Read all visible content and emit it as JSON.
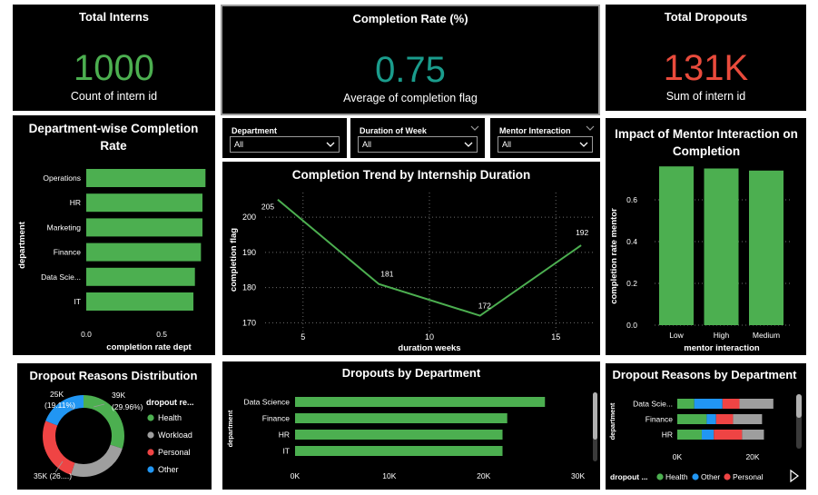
{
  "kpis": {
    "interns": {
      "title": "Total Interns",
      "value": "1000",
      "subtitle": "Count of intern id",
      "color": "#4caf50"
    },
    "completion": {
      "title": "Completion Rate (%)",
      "value": "0.75",
      "subtitle": "Average of completion flag",
      "color": "#1a9c8c"
    },
    "dropouts": {
      "title": "Total Dropouts",
      "value": "131K",
      "subtitle": "Sum of intern id",
      "color": "#e94b3c"
    }
  },
  "slicers": [
    {
      "label": "Department",
      "value": "All"
    },
    {
      "label": "Duration of Week",
      "value": "All"
    },
    {
      "label": "Mentor Interaction",
      "value": "All"
    }
  ],
  "colors": {
    "bar": "#4caf50",
    "health": "#4caf50",
    "workload": "#9e9e9e",
    "personal": "#ef4444",
    "other": "#2196f3",
    "grid": "#6b6b6b"
  },
  "chart_data": [
    {
      "type": "bar",
      "orientation": "horizontal",
      "title": "Department-wise Completion Rate",
      "ylabel": "department",
      "xlabel": "completion rate dept",
      "categories": [
        "Operations",
        "HR",
        "Marketing",
        "Finance",
        "Data Scie...",
        "IT"
      ],
      "values": [
        0.79,
        0.77,
        0.77,
        0.76,
        0.72,
        0.71
      ],
      "xlim": [
        0,
        0.8
      ],
      "xticks": [
        "0.0",
        "0.5"
      ]
    },
    {
      "type": "line",
      "title": "Completion Trend by Internship Duration",
      "xlabel": "duration weeks",
      "ylabel": "completion flag",
      "x": [
        4,
        8,
        12,
        16
      ],
      "y": [
        205,
        181,
        172,
        192
      ],
      "data_labels": [
        "205",
        "181",
        "172",
        "192"
      ],
      "xlim": [
        3.5,
        16.5
      ],
      "ylim": [
        167.5,
        207
      ],
      "xticks": [
        "5",
        "10",
        "15"
      ],
      "yticks": [
        "170",
        "180",
        "190",
        "200"
      ]
    },
    {
      "type": "bar",
      "title": "Impact of Mentor Interaction on Completion",
      "xlabel": "mentor interaction",
      "ylabel": "completion rate mentor",
      "categories": [
        "Low",
        "High",
        "Medium"
      ],
      "values": [
        0.76,
        0.75,
        0.74
      ],
      "ylim": [
        0,
        0.8
      ],
      "yticks": [
        "0.0",
        "0.2",
        "0.4",
        "0.6"
      ]
    },
    {
      "type": "pie",
      "subtype": "donut",
      "title": "Dropout Reasons Distribution",
      "legend_title": "dropout re...",
      "slices": [
        {
          "name": "Health",
          "value": 29.96,
          "label": "39K\n(29.96%)"
        },
        {
          "name": "Workload",
          "value": 25.0,
          "label": ""
        },
        {
          "name": "Personal",
          "value": 25.93,
          "label": "35K (26....)"
        },
        {
          "name": "Other",
          "value": 19.11,
          "label": "25K\n(19.11%)"
        }
      ]
    },
    {
      "type": "bar",
      "orientation": "horizontal",
      "title": "Dropouts by Department",
      "ylabel": "department",
      "categories": [
        "Data Science",
        "Finance",
        "HR",
        "IT"
      ],
      "values": [
        26500,
        22500,
        22000,
        22000
      ],
      "xlim": [
        0,
        31000
      ],
      "xticks": [
        "0K",
        "10K",
        "20K",
        "30K"
      ]
    },
    {
      "type": "bar",
      "orientation": "horizontal",
      "stacked": true,
      "title": "Dropout Reasons by Department",
      "ylabel": "department",
      "legend_title": "dropout ...",
      "categories": [
        "Data Scie...",
        "Finance",
        "HR"
      ],
      "series": [
        {
          "name": "Health",
          "values": [
            4500,
            7800,
            6500
          ]
        },
        {
          "name": "Other",
          "values": [
            7500,
            2500,
            3200
          ]
        },
        {
          "name": "Personal",
          "values": [
            4500,
            4500,
            7500
          ]
        },
        {
          "name": "Workload",
          "values": [
            9000,
            7700,
            5800
          ]
        }
      ],
      "xticks": [
        "0K",
        "20K"
      ]
    }
  ]
}
